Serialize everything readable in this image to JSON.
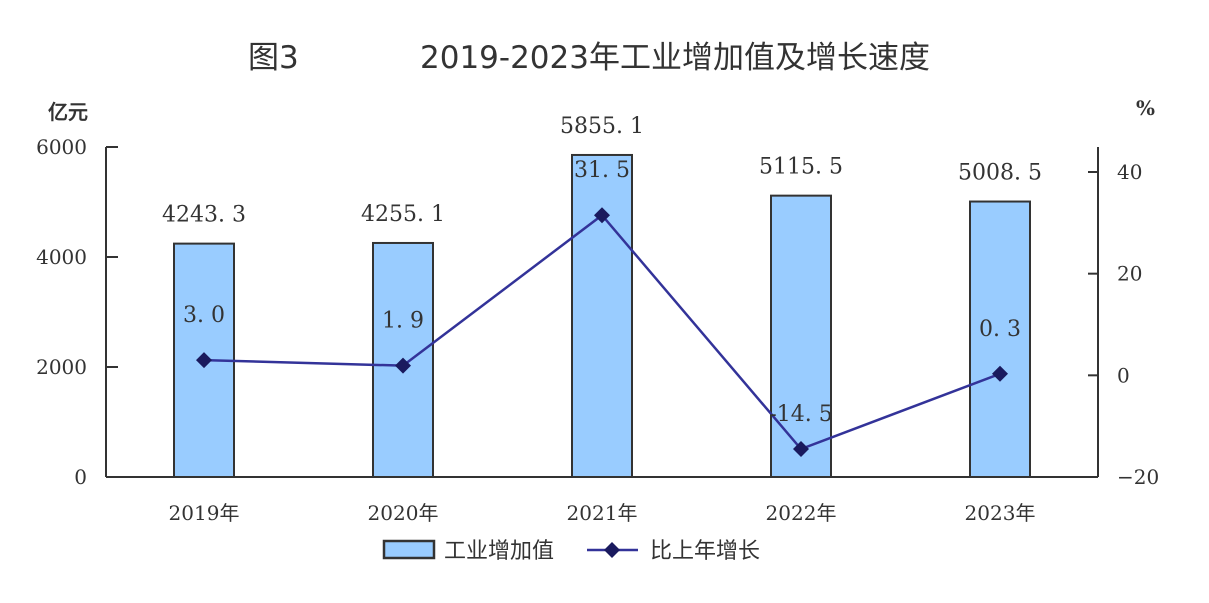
{
  "title": {
    "figure_no": "图3",
    "text": "2019-2023年工业增加值及增长速度"
  },
  "axes": {
    "left_unit": "亿元",
    "right_unit": "%"
  },
  "legend": {
    "bar_label": "工业增加值",
    "line_label": "比上年增长"
  },
  "colors": {
    "bar_fill": "#99ccff",
    "bar_stroke": "#333333",
    "line": "#333399",
    "marker": "#1a1a5e",
    "axis": "#333333"
  },
  "chart_data": {
    "type": "bar",
    "title": "2019-2023年工业增加值及增长速度",
    "categories": [
      "2019年",
      "2020年",
      "2021年",
      "2022年",
      "2023年"
    ],
    "series": [
      {
        "name": "工业增加值",
        "type": "bar",
        "axis": "left",
        "unit": "亿元",
        "values": [
          4243.3,
          4255.1,
          5855.1,
          5115.5,
          5008.5
        ],
        "labels": [
          "4243.3",
          "4255.1",
          "5855.1",
          "5115.5",
          "5008.5"
        ]
      },
      {
        "name": "比上年增长",
        "type": "line",
        "axis": "right",
        "unit": "%",
        "values": [
          3.0,
          1.9,
          31.5,
          -14.5,
          0.3
        ],
        "labels": [
          "3.0",
          "1.9",
          "31.5",
          "-14.5",
          "0.3"
        ]
      }
    ],
    "xlabel": "",
    "ylabel": "亿元",
    "y2label": "%",
    "ylim": [
      0,
      6000
    ],
    "y2lim": [
      -20,
      45
    ],
    "yticks": [
      0,
      2000,
      4000,
      6000
    ],
    "y2ticks": [
      -20,
      0,
      20,
      40
    ],
    "grid": false,
    "legend_position": "bottom"
  }
}
